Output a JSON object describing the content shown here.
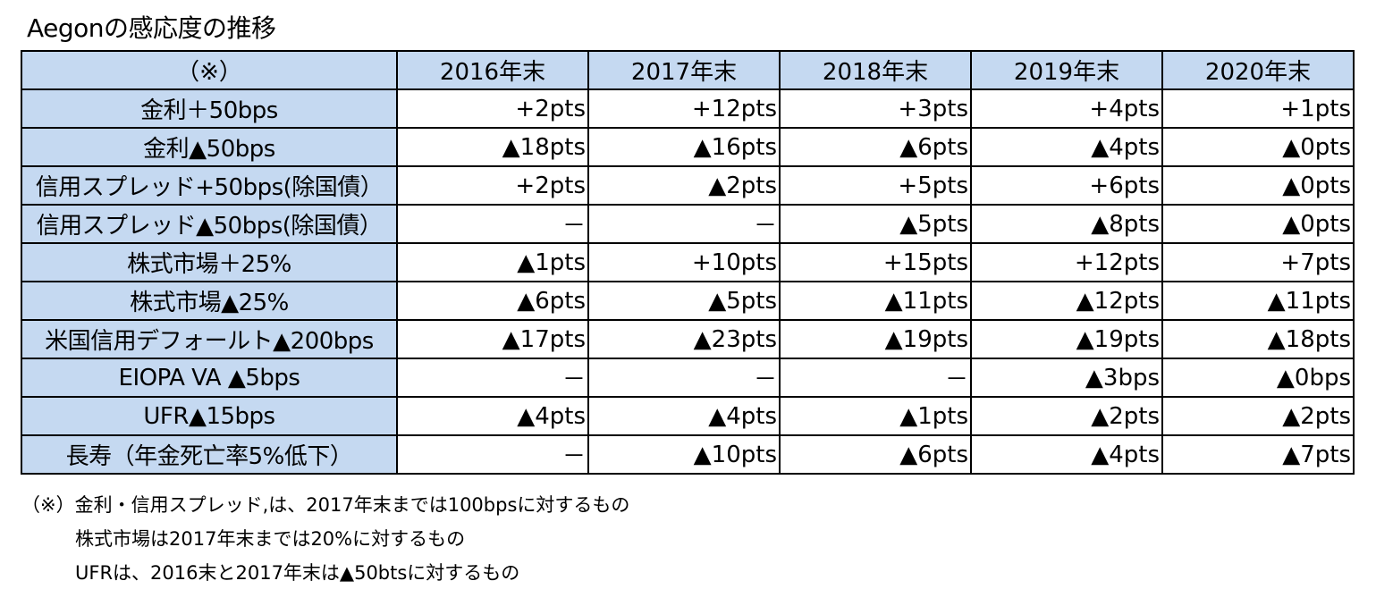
{
  "title": "Aegonの感応度の推移",
  "chart_data": {
    "type": "table",
    "title": "Aegonの感応度の推移",
    "corner_label": "（※）",
    "columns": [
      "2016年末",
      "2017年末",
      "2018年末",
      "2019年末",
      "2020年末"
    ],
    "rows": [
      {
        "label": "金利＋50bps",
        "values": [
          "+2pts",
          "+12pts",
          "+3pts",
          "+4pts",
          "+1pts"
        ]
      },
      {
        "label": "金利▲50bps",
        "values": [
          "▲18pts",
          "▲16pts",
          "▲6pts",
          "▲4pts",
          "▲0pts"
        ]
      },
      {
        "label": "信用スプレッド+50bps(除国債）",
        "values": [
          "+2pts",
          "▲2pts",
          "+5pts",
          "+6pts",
          "▲0pts"
        ]
      },
      {
        "label": "信用スプレッド▲50bps(除国債）",
        "values": [
          "－",
          "－",
          "▲5pts",
          "▲8pts",
          "▲0pts"
        ]
      },
      {
        "label": "株式市場＋25%",
        "values": [
          "▲1pts",
          "+10pts",
          "+15pts",
          "+12pts",
          "+7pts"
        ]
      },
      {
        "label": "株式市場▲25%",
        "values": [
          "▲6pts",
          "▲5pts",
          "▲11pts",
          "▲12pts",
          "▲11pts"
        ]
      },
      {
        "label": "米国信用デフォールト▲200bps",
        "values": [
          "▲17pts",
          "▲23pts",
          "▲19pts",
          "▲19pts",
          "▲18pts"
        ]
      },
      {
        "label": "EIOPA VA ▲5bps",
        "values": [
          "－",
          "－",
          "－",
          "▲3bps",
          "▲0bps"
        ]
      },
      {
        "label": "UFR▲15bps",
        "values": [
          "▲4pts",
          "▲4pts",
          "▲1pts",
          "▲2pts",
          "▲2pts"
        ]
      },
      {
        "label": "長寿（年金死亡率5%低下）",
        "values": [
          "－",
          "▲10pts",
          "▲6pts",
          "▲4pts",
          "▲7pts"
        ]
      }
    ],
    "header_color": "#c5d9f1",
    "border_color": "#000000"
  },
  "notes": [
    "（※）金利・信用スプレッド,は、2017年末までは100bpsに対するもの",
    "株式市場は2017年末までは20%に対するもの",
    "UFRは、2016末と2017年末は▲50btsに対するもの"
  ]
}
